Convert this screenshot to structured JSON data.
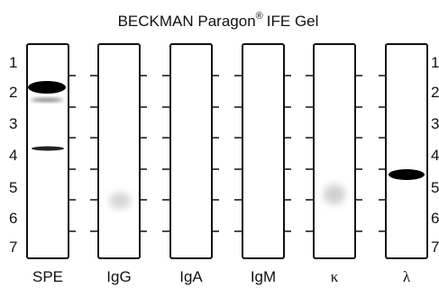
{
  "title": {
    "text": "BECKMAN Paragon",
    "registered": "®",
    "suffix": "IFE Gel"
  },
  "lanes": [
    "SPE",
    "IgG",
    "IgA",
    "IgM",
    "κ",
    "λ"
  ],
  "rows": [
    "1",
    "2",
    "3",
    "4",
    "5",
    "6",
    "7"
  ]
}
